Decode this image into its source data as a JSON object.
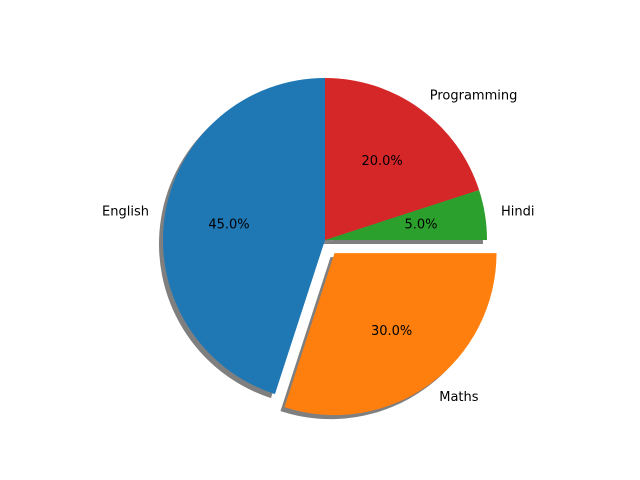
{
  "chart_data": {
    "type": "pie",
    "start_angle_deg": 90,
    "direction": "counterclockwise",
    "shadow": true,
    "slices": [
      {
        "label": "English",
        "value": 45.0,
        "pct_label": "45.0%",
        "color": "#1f77b4",
        "exploded": false
      },
      {
        "label": "Maths",
        "value": 30.0,
        "pct_label": "30.0%",
        "color": "#ff7f0e",
        "exploded": true
      },
      {
        "label": "Hindi",
        "value": 5.0,
        "pct_label": "5.0%",
        "color": "#2ca02c",
        "exploded": false
      },
      {
        "label": "Programming",
        "value": 20.0,
        "pct_label": "20.0%",
        "color": "#d62728",
        "exploded": false
      }
    ]
  }
}
